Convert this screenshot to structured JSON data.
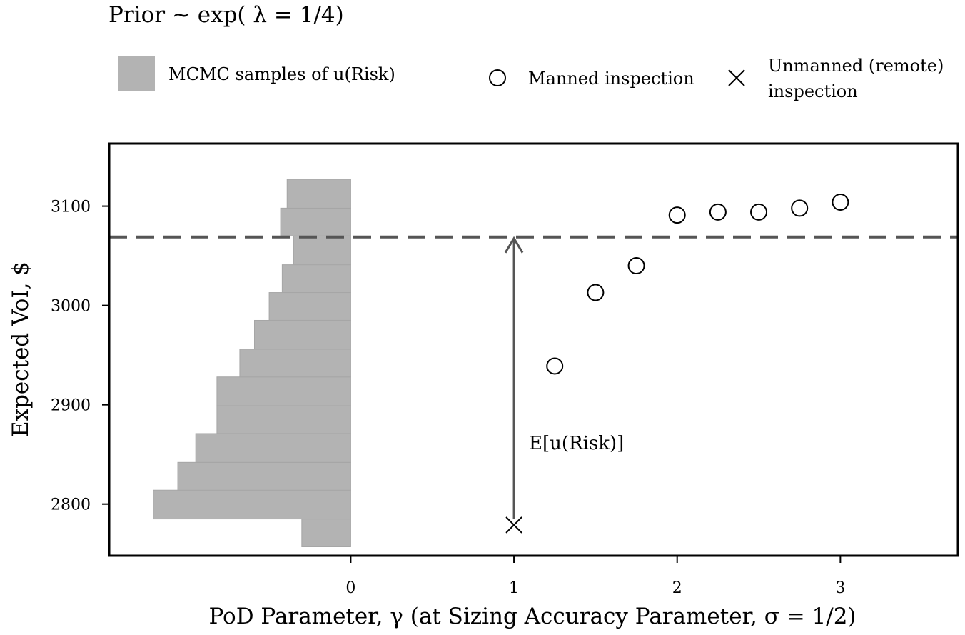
{
  "chart_data": {
    "type": "scatter",
    "title": "Prior ~ exp( λ = 1/4)",
    "xlabel": "PoD Parameter, γ (at Sizing Accuracy Parameter, σ = 1/2)",
    "ylabel": "Expected VoI, $",
    "xlim": [
      -1.48,
      3.72
    ],
    "ylim": [
      2748,
      3163
    ],
    "x_ticks": [
      {
        "value": 0,
        "label": "0"
      },
      {
        "value": 1,
        "label": "1"
      },
      {
        "value": 2,
        "label": "2"
      },
      {
        "value": 3,
        "label": "3"
      }
    ],
    "y_ticks": [
      {
        "value": 2800,
        "label": "2800"
      },
      {
        "value": 2900,
        "label": "2900"
      },
      {
        "value": 3000,
        "label": "3000"
      },
      {
        "value": 3100,
        "label": "3100"
      }
    ],
    "legend": {
      "placement": "top",
      "histogram_label": "MCMC samples of u(Risk)",
      "manned_label": "Manned inspection",
      "unmanned_label_line1": "Unmanned (remote)",
      "unmanned_label_line2": "inspection"
    },
    "series": [
      {
        "name": "Manned inspection",
        "marker": "circle",
        "points": [
          {
            "x": 1.25,
            "y": 2939
          },
          {
            "x": 1.5,
            "y": 3013
          },
          {
            "x": 1.75,
            "y": 3040
          },
          {
            "x": 2.0,
            "y": 3091
          },
          {
            "x": 2.25,
            "y": 3094
          },
          {
            "x": 2.5,
            "y": 3094
          },
          {
            "x": 2.75,
            "y": 3098
          },
          {
            "x": 3.0,
            "y": 3104
          }
        ]
      },
      {
        "name": "Unmanned (remote) inspection",
        "marker": "x",
        "points": [
          {
            "x": 1.0,
            "y": 2779
          }
        ]
      }
    ],
    "expected_line": {
      "y": 3069,
      "style": "dashed"
    },
    "annotation": {
      "text": "E[u(Risk)]",
      "x": 1.0,
      "y_from": 2779,
      "y_to": 3069
    },
    "histogram": {
      "name": "MCMC samples of u(Risk)",
      "orientation": "horizontal",
      "bin_edges": [
        2757,
        2785,
        2814,
        2842,
        2871,
        2899,
        2928,
        2956,
        2985,
        3013,
        3041,
        3070,
        3098,
        3127
      ],
      "widths": [
        0.3,
        1.21,
        1.06,
        0.95,
        0.82,
        0.82,
        0.68,
        0.59,
        0.5,
        0.42,
        0.35,
        0.43,
        0.39,
        0.35
      ]
    },
    "colors": {
      "histogram": "#b3b3b3",
      "line": "#555555",
      "marker": "#000000",
      "axis": "#000000"
    },
    "grid": false
  }
}
